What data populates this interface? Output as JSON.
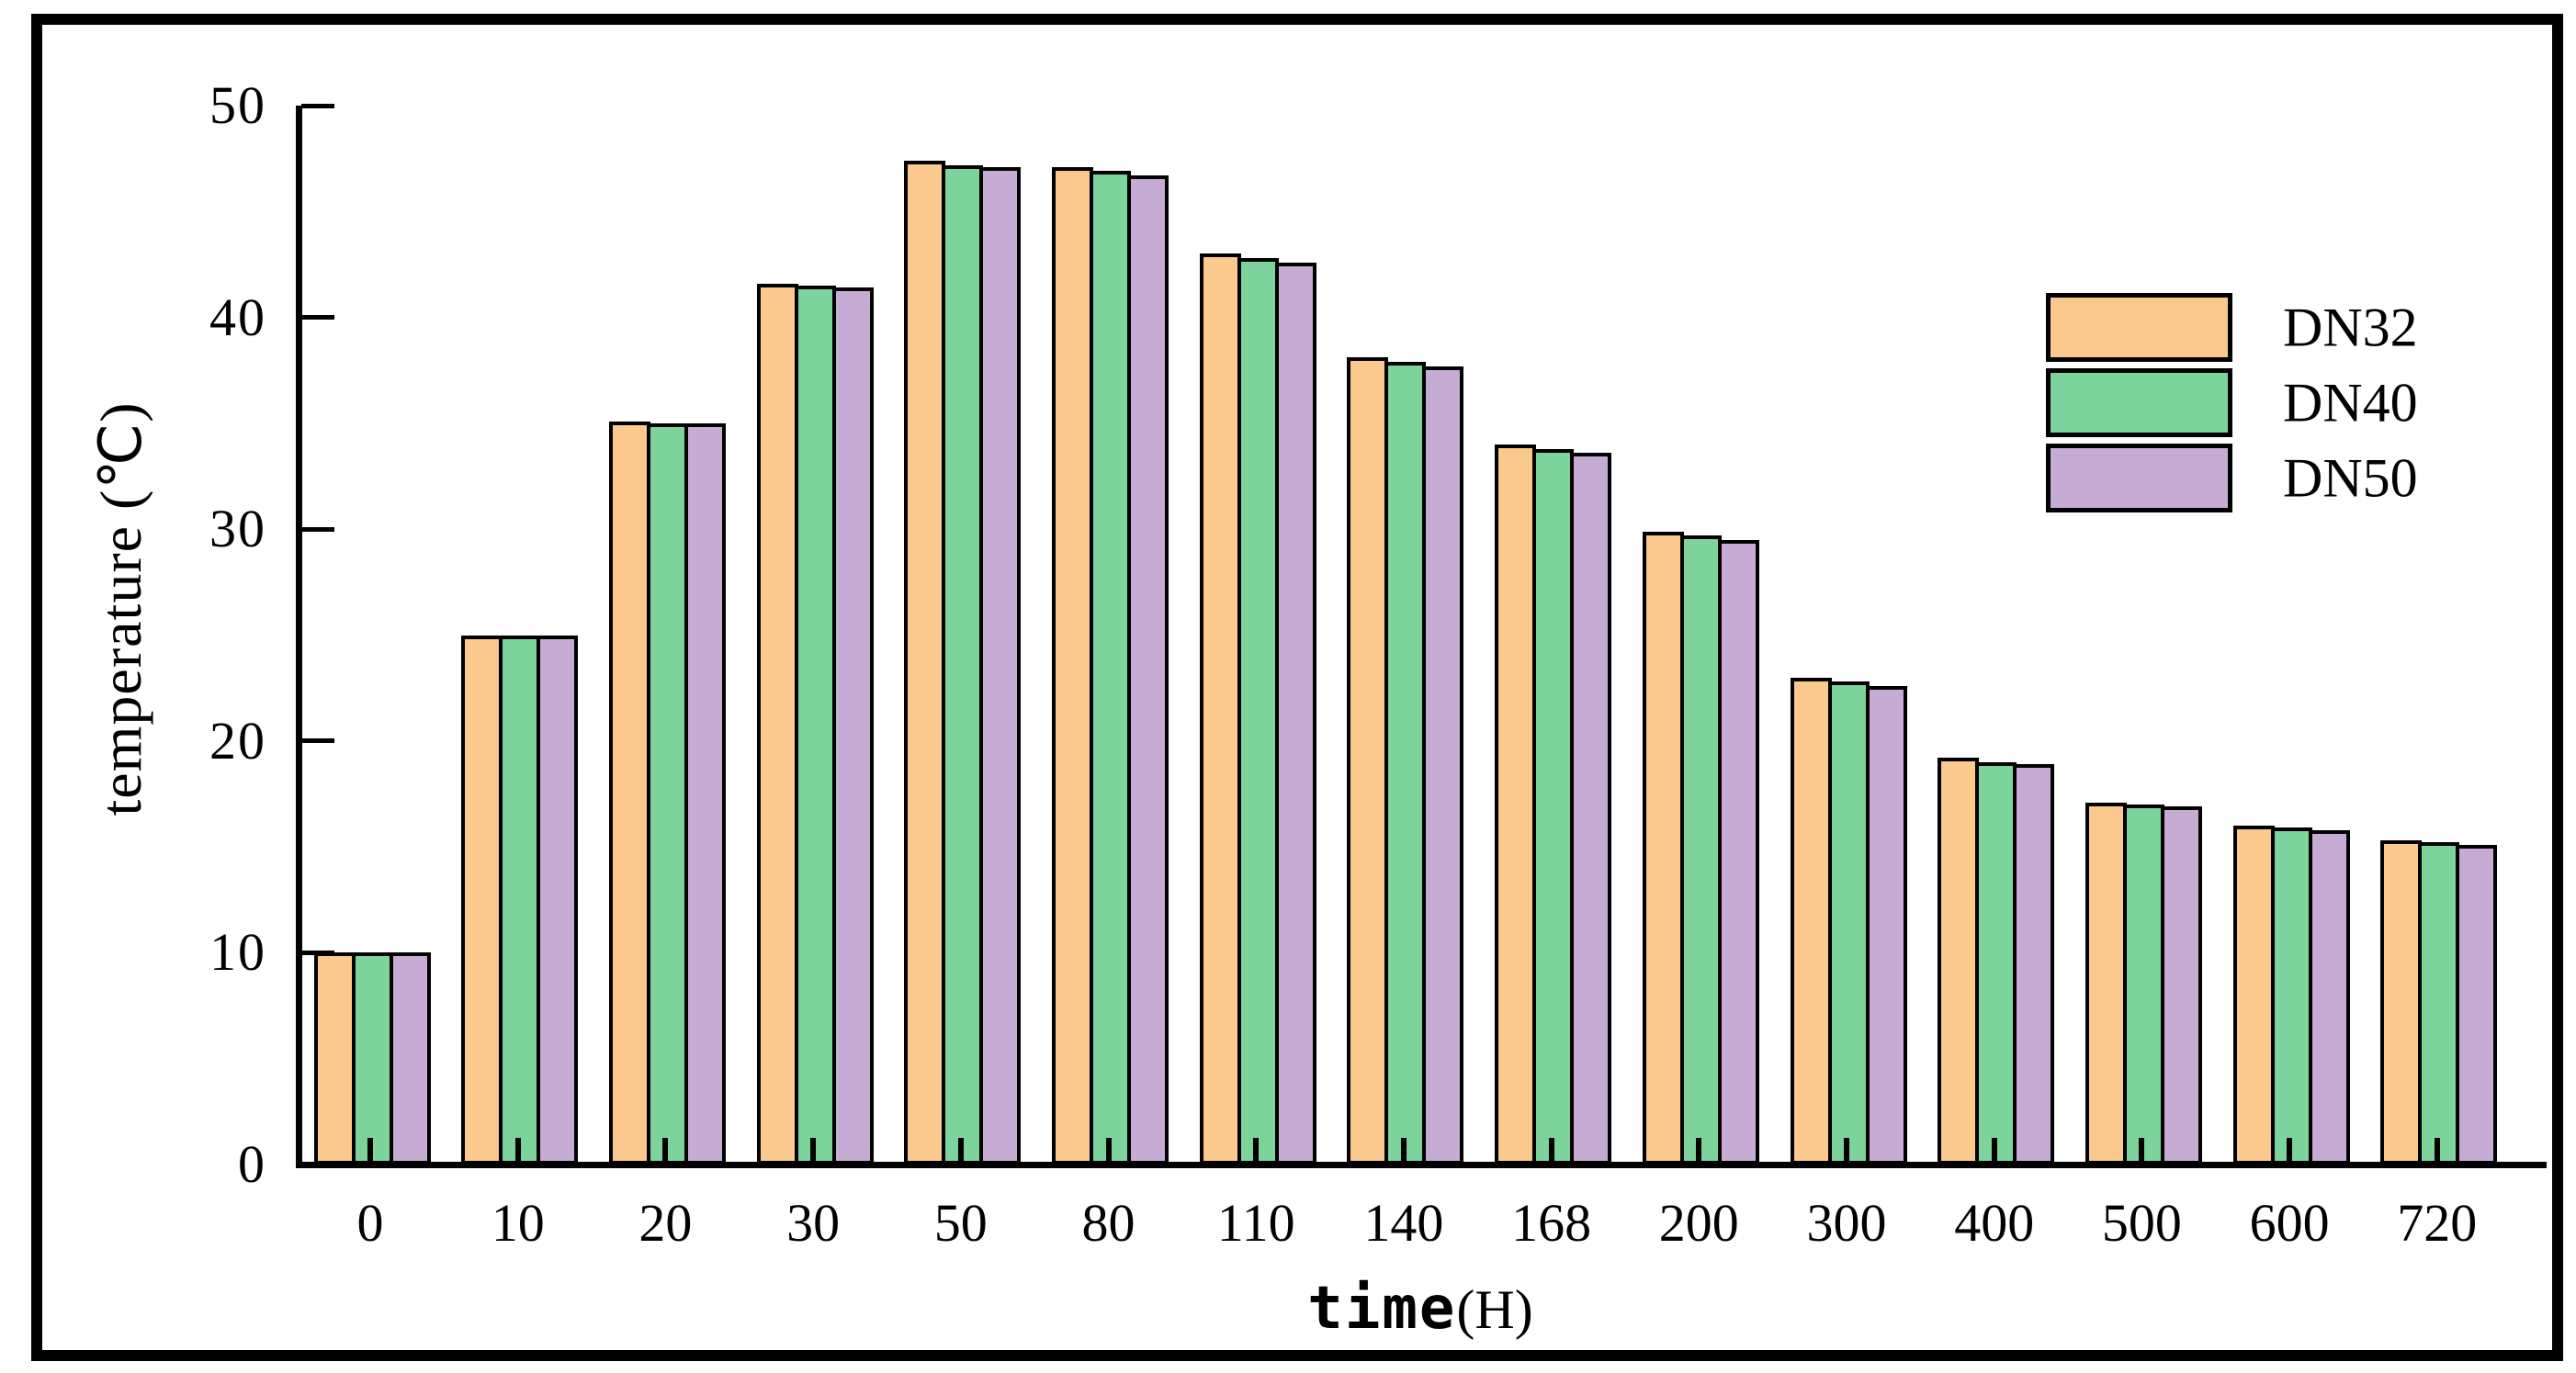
{
  "figure": {
    "background": "#ffffff",
    "border_color": "#000000"
  },
  "chart_data": {
    "type": "bar",
    "title": "",
    "xlabel_main": "time",
    "xlabel_unit": "(H)",
    "ylabel": "temperature (℃)",
    "categories": [
      "0",
      "10",
      "20",
      "30",
      "50",
      "80",
      "110",
      "140",
      "168",
      "200",
      "300",
      "400",
      "500",
      "600",
      "720"
    ],
    "series": [
      {
        "name": "DN32",
        "color": "#FBC98E",
        "values": [
          10,
          25,
          35.1,
          41.6,
          47.4,
          47.1,
          43.0,
          38.1,
          34.0,
          29.9,
          23.0,
          19.2,
          17.1,
          16.0,
          15.3
        ]
      },
      {
        "name": "DN40",
        "color": "#7CD39B",
        "values": [
          10,
          25,
          35.0,
          41.5,
          47.2,
          46.9,
          42.8,
          37.9,
          33.8,
          29.7,
          22.8,
          19.0,
          17.0,
          15.9,
          15.2
        ]
      },
      {
        "name": "DN50",
        "color": "#C6ABD5",
        "values": [
          10,
          25,
          35.0,
          41.4,
          47.1,
          46.7,
          42.6,
          37.7,
          33.6,
          29.5,
          22.6,
          18.9,
          16.9,
          15.8,
          15.1
        ]
      }
    ],
    "ylim": [
      0,
      50
    ],
    "yticks": [
      0,
      10,
      20,
      30,
      40,
      50
    ],
    "legend_position": "upper right",
    "grid": false,
    "bar_edge_color": "#000000"
  }
}
